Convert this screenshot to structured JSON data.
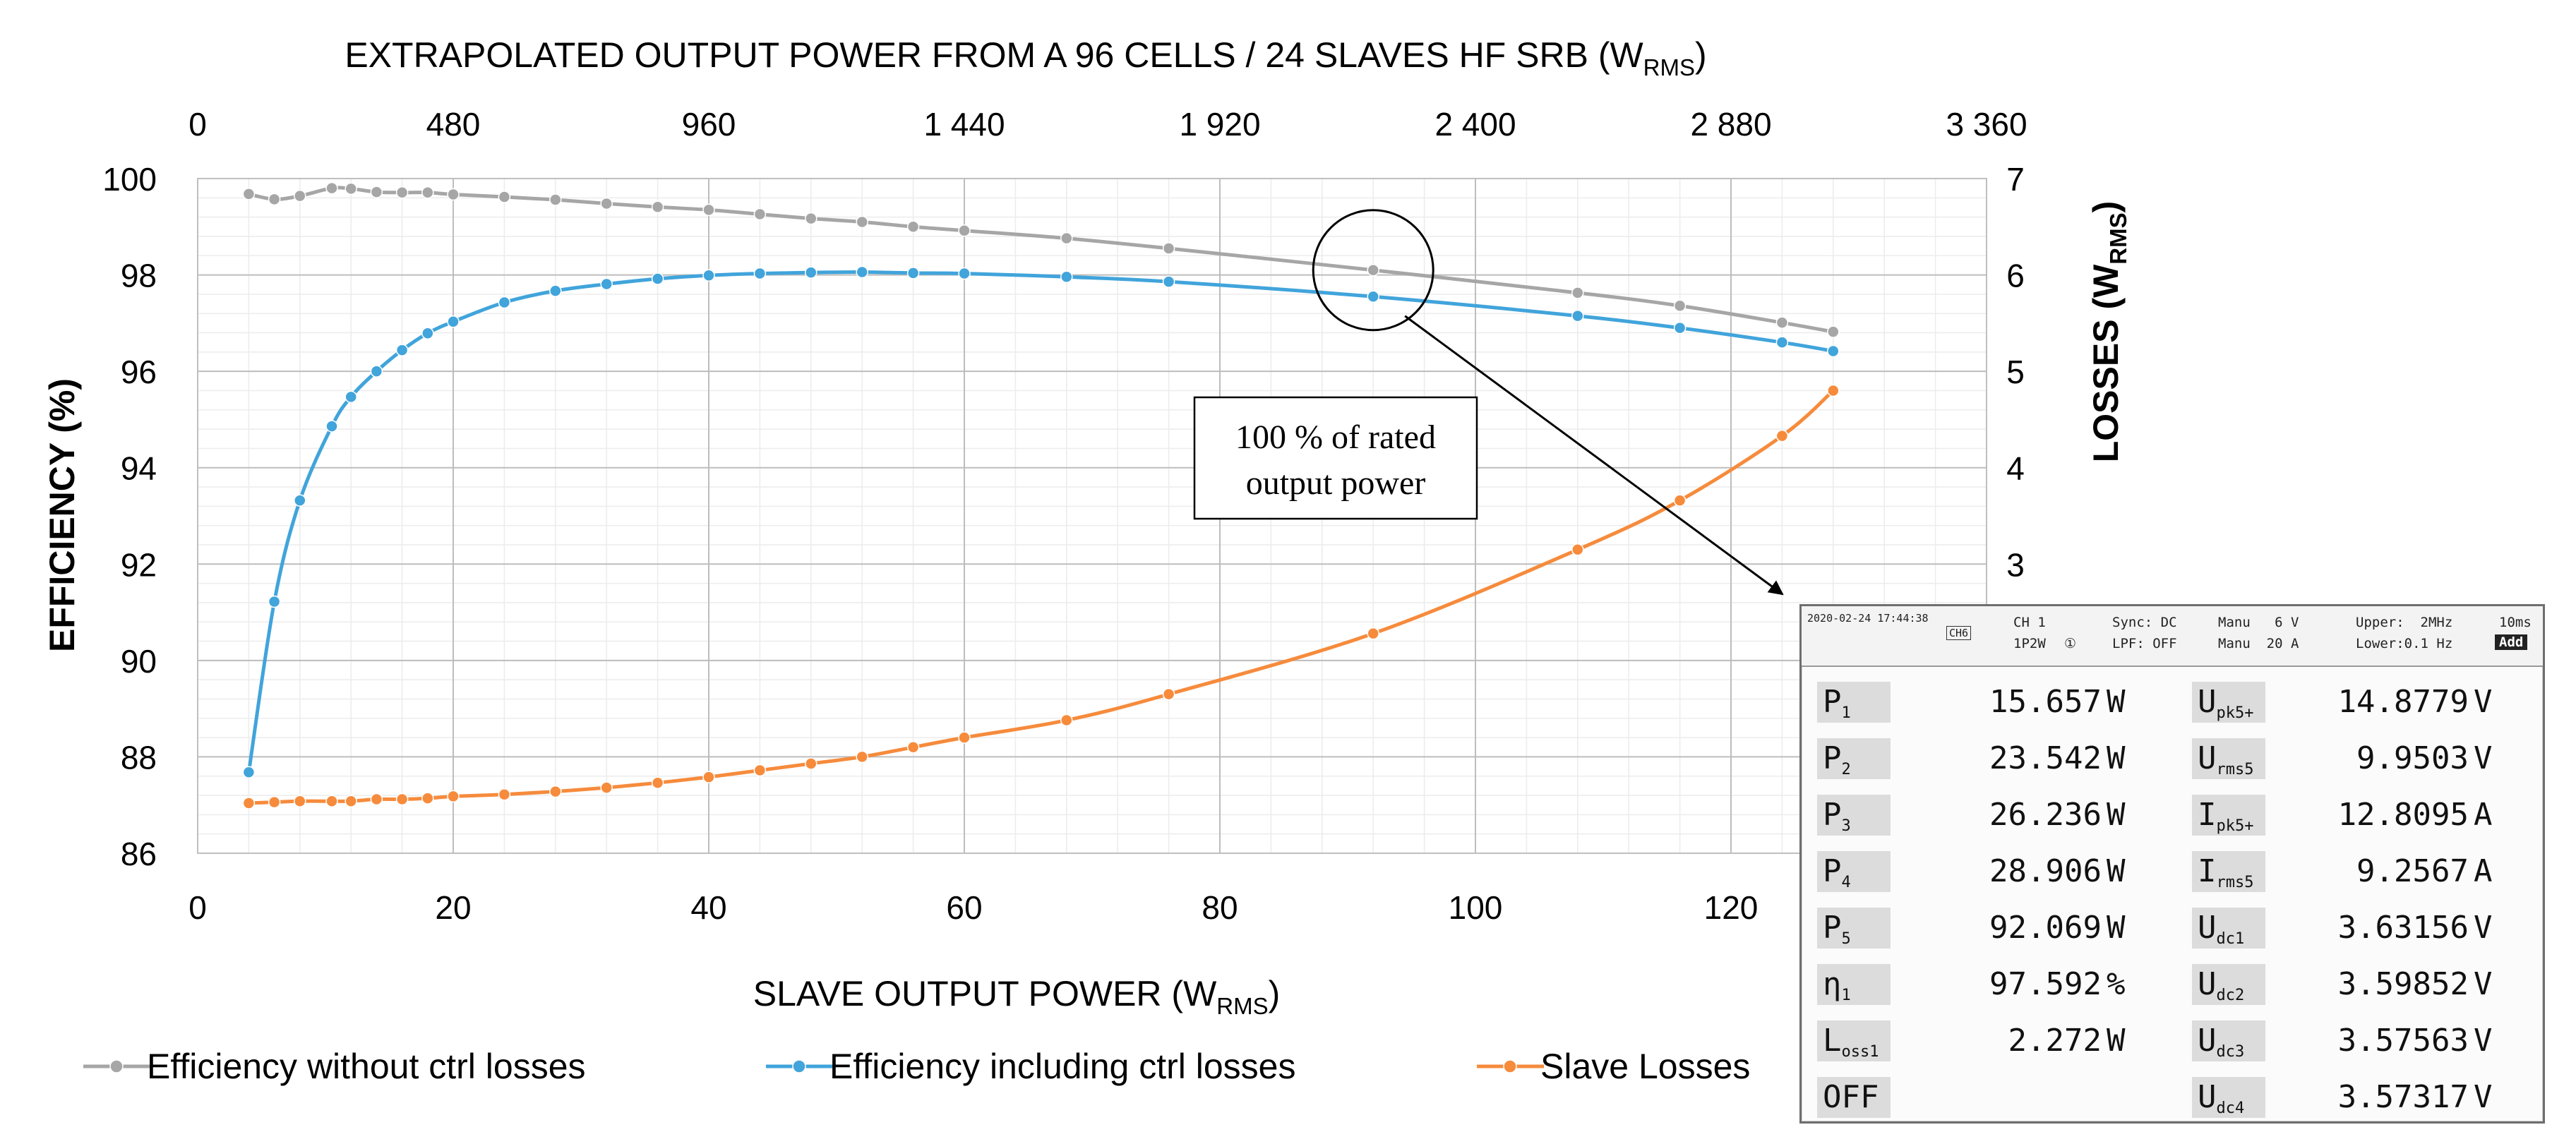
{
  "chart_data": {
    "type": "line",
    "title": "EXTRAPOLATED OUTPUT POWER FROM A 96 CELLS / 24 SLAVES HF SRB (W",
    "title_sub": "RMS",
    "title_end": ")",
    "xlabel": "SLAVE OUTPUT POWER (W",
    "xlabel_sub": "RMS",
    "xlabel_end": ")",
    "ylabel": "EFFICIENCY (%)",
    "y2label": "LOSSES (W",
    "y2label_sub": "RMS",
    "y2label_end": ")",
    "xlim": [
      0,
      140
    ],
    "ylim": [
      86,
      100
    ],
    "y2lim": [
      0,
      7
    ],
    "x_ticks": [
      "0",
      "20",
      "40",
      "60",
      "80",
      "100",
      "120"
    ],
    "y_ticks": [
      "86",
      "88",
      "90",
      "92",
      "94",
      "96",
      "98",
      "100"
    ],
    "y2_ticks": [
      "3",
      "4",
      "5",
      "6",
      "7"
    ],
    "x2_ticks": [
      "0",
      "480",
      "960",
      "1 440",
      "1 920",
      "2 400",
      "2 880",
      "3 360"
    ],
    "series": [
      {
        "name": "Efficiency without ctrl losses",
        "color": "#a6a6a6",
        "axis": "left",
        "x": [
          4,
          6,
          8,
          10.5,
          12,
          14,
          16,
          18,
          20,
          24,
          28,
          32,
          36,
          40,
          44,
          48,
          52,
          56,
          60,
          68,
          76,
          92,
          108,
          116,
          124,
          128
        ],
        "y": [
          99.68,
          99.57,
          99.64,
          99.8,
          99.79,
          99.72,
          99.71,
          99.71,
          99.67,
          99.62,
          99.56,
          99.48,
          99.41,
          99.35,
          99.26,
          99.17,
          99.1,
          99.0,
          98.92,
          98.76,
          98.55,
          98.1,
          97.63,
          97.36,
          97.01,
          96.82
        ]
      },
      {
        "name": "Efficiency including ctrl losses",
        "color": "#41a4db",
        "axis": "left",
        "x": [
          4,
          6,
          8,
          10.5,
          12,
          14,
          16,
          18,
          20,
          24,
          28,
          32,
          36,
          40,
          44,
          48,
          52,
          56,
          60,
          68,
          76,
          92,
          108,
          116,
          124,
          128
        ],
        "y": [
          87.68,
          91.22,
          93.32,
          94.86,
          95.47,
          96.0,
          96.44,
          96.79,
          97.03,
          97.43,
          97.67,
          97.81,
          97.92,
          97.99,
          98.03,
          98.05,
          98.06,
          98.04,
          98.03,
          97.96,
          97.86,
          97.55,
          97.15,
          96.9,
          96.6,
          96.42
        ]
      },
      {
        "name": "Slave Losses",
        "color": "#f68b3c",
        "axis": "right",
        "x": [
          4,
          6,
          8,
          10.5,
          12,
          14,
          16,
          18,
          20,
          24,
          28,
          32,
          36,
          40,
          44,
          48,
          52,
          56,
          60,
          68,
          76,
          92,
          108,
          116,
          124,
          128
        ],
        "y": [
          0.52,
          0.53,
          0.54,
          0.54,
          0.54,
          0.56,
          0.56,
          0.57,
          0.59,
          0.61,
          0.64,
          0.68,
          0.73,
          0.79,
          0.86,
          0.93,
          1.0,
          1.1,
          1.2,
          1.38,
          1.65,
          2.28,
          3.15,
          3.66,
          4.33,
          4.8
        ]
      }
    ],
    "annotation": {
      "line1": "100 % of rated",
      "line2": "output power",
      "x": 92,
      "y": 98.1
    }
  },
  "meter": {
    "date": "2020-02-24 17:44:38",
    "ch_tag": "CH6",
    "ch": "CH 1",
    "wiring": "1P2W",
    "wiring_icon": "①",
    "sync": "Sync: DC",
    "lpf": "LPF: OFF",
    "manu_v": "Manu   6 V",
    "manu_a": "Manu  20 A",
    "upper": "Upper:  2MHz",
    "lower": "Lower:0.1 Hz",
    "period": "10ms",
    "add": "Add",
    "left_rows": [
      {
        "name": "P",
        "sub": "1",
        "value": "15.657",
        "unit": "W"
      },
      {
        "name": "P",
        "sub": "2",
        "value": "23.542",
        "unit": "W"
      },
      {
        "name": "P",
        "sub": "3",
        "value": "26.236",
        "unit": "W"
      },
      {
        "name": "P",
        "sub": "4",
        "value": "28.906",
        "unit": "W"
      },
      {
        "name": "P",
        "sub": "5",
        "value": "92.069",
        "unit": "W"
      },
      {
        "name": "η",
        "sub": "1",
        "value": "97.592",
        "unit": "%"
      },
      {
        "name": "L",
        "sub": "oss1",
        "value": "2.272",
        "unit": "W"
      },
      {
        "name": "OFF",
        "sub": "",
        "value": "",
        "unit": ""
      }
    ],
    "right_rows": [
      {
        "name": "U",
        "sub": "pk5+",
        "value": "14.8779",
        "unit": "V"
      },
      {
        "name": "U",
        "sub": "rms5",
        "value": "9.9503",
        "unit": "V"
      },
      {
        "name": "I",
        "sub": "pk5+",
        "value": "12.8095",
        "unit": "A"
      },
      {
        "name": "I",
        "sub": "rms5",
        "value": "9.2567",
        "unit": "A"
      },
      {
        "name": "U",
        "sub": "dc1",
        "value": "3.63156",
        "unit": "V"
      },
      {
        "name": "U",
        "sub": "dc2",
        "value": "3.59852",
        "unit": "V"
      },
      {
        "name": "U",
        "sub": "dc3",
        "value": "3.57563",
        "unit": "V"
      },
      {
        "name": "U",
        "sub": "dc4",
        "value": "3.57317",
        "unit": "V"
      }
    ]
  }
}
